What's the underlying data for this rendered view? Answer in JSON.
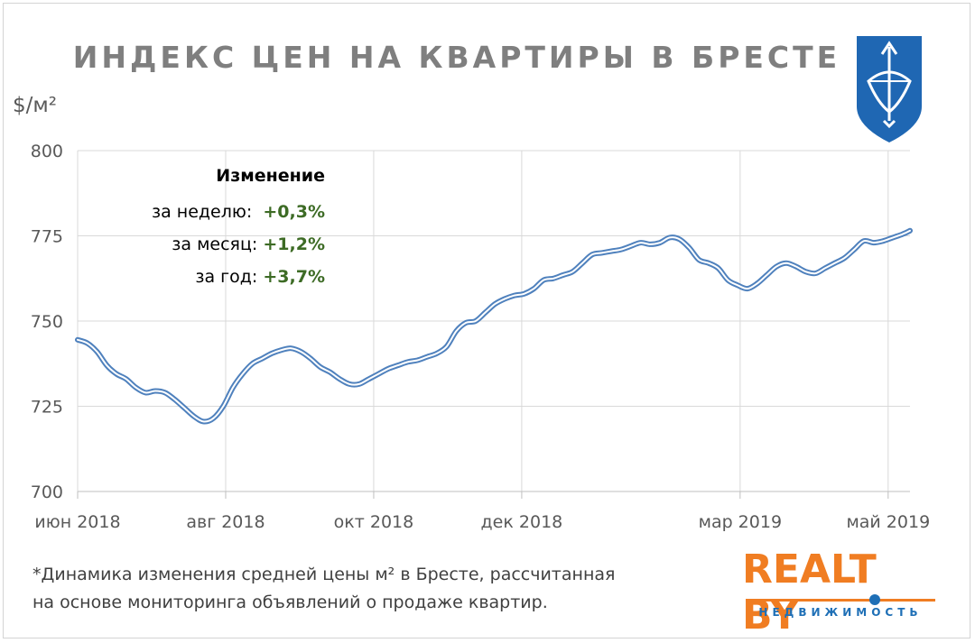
{
  "header": {
    "title": "ИНДЕКС ЦЕН НА КВАРТИРЫ В БРЕСТЕ",
    "unit": "$/м²"
  },
  "emblem": {
    "icon": "brest-coat-of-arms-icon",
    "color": "#1f67b3"
  },
  "change_panel": {
    "heading": "Изменение",
    "rows": [
      {
        "label": "за неделю:",
        "value": "+0,3%"
      },
      {
        "label": "за месяц:",
        "value": "+1,2%"
      },
      {
        "label": "за год:",
        "value": "+3,7%"
      }
    ]
  },
  "chart_data": {
    "type": "line",
    "title": "ИНДЕКС ЦЕН НА КВАРТИРЫ В БРЕСТЕ",
    "ylabel": "$/м²",
    "xlabel": "",
    "ylim": [
      700,
      800
    ],
    "yticks": [
      700,
      725,
      750,
      775,
      800
    ],
    "xlim": [
      "2018-06-01",
      "2019-05-10"
    ],
    "xticks": [
      {
        "label": "июн 2018",
        "date": "2018-06-01"
      },
      {
        "label": "авг 2018",
        "date": "2018-08-01"
      },
      {
        "label": "окт 2018",
        "date": "2018-10-01"
      },
      {
        "label": "дек 2018",
        "date": "2018-12-01"
      },
      {
        "label": "мар 2019",
        "date": "2019-03-01"
      },
      {
        "label": "май 2019",
        "date": "2019-05-01"
      }
    ],
    "grid": true,
    "series_color": "#4f81bd",
    "series": [
      {
        "x": [
          "2018-06-01",
          "2018-06-05",
          "2018-06-09",
          "2018-06-13",
          "2018-06-17",
          "2018-06-21",
          "2018-06-25",
          "2018-06-29",
          "2018-07-03",
          "2018-07-07",
          "2018-07-11",
          "2018-07-15",
          "2018-07-19",
          "2018-07-23",
          "2018-07-27",
          "2018-07-31",
          "2018-08-04",
          "2018-08-08",
          "2018-08-12",
          "2018-08-16",
          "2018-08-20",
          "2018-08-24",
          "2018-08-28",
          "2018-09-01",
          "2018-09-05",
          "2018-09-09",
          "2018-09-13",
          "2018-09-17",
          "2018-09-21",
          "2018-09-25",
          "2018-09-29",
          "2018-10-03",
          "2018-10-07",
          "2018-10-11",
          "2018-10-15",
          "2018-10-19",
          "2018-10-23",
          "2018-10-27",
          "2018-10-31",
          "2018-11-04",
          "2018-11-08",
          "2018-11-12",
          "2018-11-16",
          "2018-11-20",
          "2018-11-24",
          "2018-11-28",
          "2018-12-02",
          "2018-12-06",
          "2018-12-10",
          "2018-12-14",
          "2018-12-18",
          "2018-12-22",
          "2018-12-26",
          "2018-12-30",
          "2019-01-03",
          "2019-01-07",
          "2019-01-11",
          "2019-01-15",
          "2019-01-19",
          "2019-01-23",
          "2019-01-27",
          "2019-01-31",
          "2019-02-04",
          "2019-02-08",
          "2019-02-12",
          "2019-02-16",
          "2019-02-20",
          "2019-02-24",
          "2019-02-28",
          "2019-03-04",
          "2019-03-08",
          "2019-03-12",
          "2019-03-16",
          "2019-03-20",
          "2019-03-24",
          "2019-03-28",
          "2019-04-01",
          "2019-04-05",
          "2019-04-09",
          "2019-04-13",
          "2019-04-17",
          "2019-04-21",
          "2019-04-25",
          "2019-04-29",
          "2019-05-03",
          "2019-05-07",
          "2019-05-10"
        ],
        "values": [
          744.5,
          743.5,
          741,
          737,
          734.5,
          733,
          730.5,
          729,
          729.5,
          729,
          727,
          724.5,
          722,
          720.5,
          721.5,
          725,
          730.5,
          734.5,
          737.5,
          739,
          740.5,
          741.5,
          742,
          741,
          739,
          736.5,
          735,
          733,
          731.5,
          731.5,
          733,
          734.5,
          736,
          737,
          738,
          738.5,
          739.5,
          740.5,
          742.5,
          747,
          749.5,
          750,
          752.5,
          755,
          756.5,
          757.5,
          758,
          759.5,
          762,
          762.5,
          763.5,
          764.5,
          767,
          769.5,
          770,
          770.5,
          771,
          772,
          773,
          772.5,
          773,
          774.5,
          774,
          771.5,
          768,
          767,
          765.5,
          762,
          760.5,
          759.5,
          761,
          763.5,
          766,
          767,
          766,
          764.5,
          764,
          765.5,
          767,
          768.5,
          771,
          773.5,
          773,
          773.5,
          774.5,
          775.5,
          776.5
        ]
      }
    ]
  },
  "footnote": {
    "line1": "*Динамика  изменения  средней цены м² в Бресте, рассчитанная",
    "line2": "на основе мониторинга  объявлений  о продаже квартир."
  },
  "brand": {
    "name": "REALT.BY",
    "name_display": "REALT BY",
    "tagline": "НЕДВИЖИМОСТЬ",
    "orange": "#f07d22",
    "blue": "#1e6fb6"
  }
}
